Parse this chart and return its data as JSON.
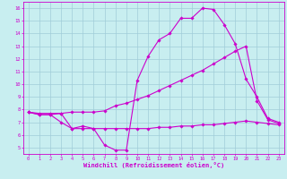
{
  "title": "",
  "xlabel": "Windchill (Refroidissement éolien,°C)",
  "ylabel": "",
  "background_color": "#c8eef0",
  "line_color": "#cc00cc",
  "grid_color": "#a0ccd8",
  "xlim": [
    -0.5,
    23.5
  ],
  "ylim": [
    4.5,
    16.5
  ],
  "xticks": [
    0,
    1,
    2,
    3,
    4,
    5,
    6,
    7,
    8,
    9,
    10,
    11,
    12,
    13,
    14,
    15,
    16,
    17,
    18,
    19,
    20,
    21,
    22,
    23
  ],
  "yticks": [
    5,
    6,
    7,
    8,
    9,
    10,
    11,
    12,
    13,
    14,
    15,
    16
  ],
  "curve1_x": [
    0,
    1,
    2,
    3,
    4,
    5,
    6,
    7,
    8,
    9,
    10,
    11,
    12,
    13,
    14,
    15,
    16,
    17,
    18,
    19,
    20,
    21,
    22,
    23
  ],
  "curve1_y": [
    7.8,
    7.7,
    7.7,
    7.7,
    6.5,
    6.7,
    6.5,
    5.2,
    4.8,
    4.8,
    10.3,
    12.2,
    13.5,
    14.0,
    15.2,
    15.2,
    16.0,
    15.9,
    14.7,
    13.2,
    10.4,
    9.0,
    7.3,
    7.0
  ],
  "curve2_x": [
    0,
    1,
    2,
    3,
    4,
    5,
    6,
    7,
    8,
    9,
    10,
    11,
    12,
    13,
    14,
    15,
    16,
    17,
    18,
    19,
    20,
    21,
    22,
    23
  ],
  "curve2_y": [
    7.8,
    7.6,
    7.6,
    7.7,
    7.8,
    7.8,
    7.8,
    7.9,
    8.3,
    8.5,
    8.8,
    9.1,
    9.5,
    9.9,
    10.3,
    10.7,
    11.1,
    11.6,
    12.1,
    12.6,
    13.0,
    8.7,
    7.2,
    6.9
  ],
  "curve3_x": [
    0,
    1,
    2,
    3,
    4,
    5,
    6,
    7,
    8,
    9,
    10,
    11,
    12,
    13,
    14,
    15,
    16,
    17,
    18,
    19,
    20,
    21,
    22,
    23
  ],
  "curve3_y": [
    7.8,
    7.6,
    7.6,
    7.0,
    6.5,
    6.5,
    6.5,
    6.5,
    6.5,
    6.5,
    6.5,
    6.5,
    6.6,
    6.6,
    6.7,
    6.7,
    6.8,
    6.8,
    6.9,
    7.0,
    7.1,
    7.0,
    6.9,
    6.8
  ]
}
